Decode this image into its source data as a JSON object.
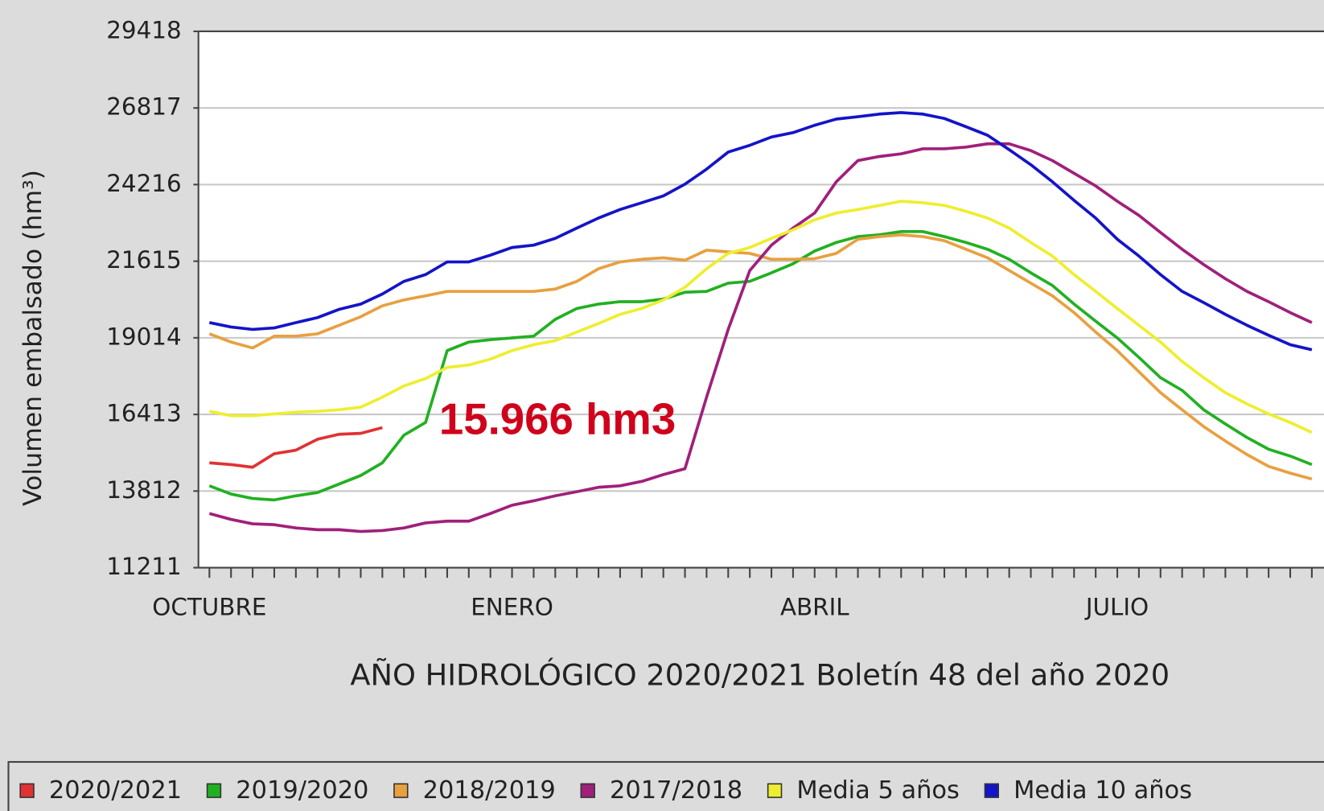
{
  "chart_data": {
    "type": "line",
    "xlabel": "AÑO HIDROLÓGICO 2020/2021 Boletín 48 del año 2020",
    "ylabel": "Volumen embalsado (hm³)",
    "annotation": "15.966 hm3",
    "categories": [
      "OCTUBRE",
      null,
      null,
      null,
      null,
      null,
      null,
      null,
      null,
      null,
      null,
      null,
      null,
      null,
      "ENERO",
      null,
      null,
      null,
      null,
      null,
      null,
      null,
      null,
      null,
      null,
      null,
      null,
      null,
      "ABRIL",
      null,
      null,
      null,
      null,
      null,
      null,
      null,
      null,
      null,
      null,
      null,
      null,
      null,
      "JULIO",
      null,
      null,
      null,
      null,
      null,
      null,
      null,
      null,
      null
    ],
    "ylim": [
      11211,
      29418
    ],
    "yticks": [
      11211,
      13812,
      16413,
      19014,
      21615,
      24216,
      26817,
      29418
    ],
    "grid": true,
    "legend": "bottom",
    "series": [
      {
        "name": "2020/2021",
        "color": "#e03232",
        "values": [
          14770,
          14710,
          14620,
          15080,
          15200,
          15570,
          15740,
          15770,
          15966,
          null,
          null,
          null,
          null,
          null,
          null,
          null,
          null,
          null,
          null,
          null,
          null,
          null,
          null,
          null,
          null,
          null,
          null,
          null,
          null,
          null,
          null,
          null,
          null,
          null,
          null,
          null,
          null,
          null,
          null,
          null,
          null,
          null,
          null,
          null,
          null,
          null,
          null,
          null,
          null,
          null,
          null,
          null
        ]
      },
      {
        "name": "2019/2020",
        "color": "#22b022",
        "values": [
          13990,
          13710,
          13560,
          13510,
          13650,
          13760,
          14050,
          14340,
          14770,
          15710,
          16140,
          18580,
          18870,
          18950,
          19010,
          19070,
          19640,
          20010,
          20160,
          20240,
          20240,
          20330,
          20560,
          20590,
          20870,
          20930,
          21220,
          21530,
          21960,
          22250,
          22450,
          22510,
          22620,
          22620,
          22450,
          22250,
          22020,
          21680,
          21220,
          20790,
          20160,
          19580,
          19010,
          18350,
          17660,
          17230,
          16570,
          16090,
          15630,
          15230,
          15000,
          14710
        ]
      },
      {
        "name": "2018/2019",
        "color": "#e8a040",
        "values": [
          19150,
          18870,
          18670,
          19070,
          19070,
          19150,
          19440,
          19730,
          20100,
          20300,
          20440,
          20590,
          20590,
          20590,
          20590,
          20590,
          20670,
          20930,
          21360,
          21590,
          21680,
          21730,
          21650,
          21990,
          21930,
          21880,
          21680,
          21680,
          21700,
          21880,
          22360,
          22450,
          22510,
          22450,
          22310,
          22020,
          21730,
          21300,
          20870,
          20440,
          19870,
          19210,
          18580,
          17860,
          17150,
          16570,
          16000,
          15510,
          15050,
          14650,
          14420,
          14220
        ]
      },
      {
        "name": "2017/2018",
        "color": "#a0207a",
        "values": [
          13050,
          12850,
          12700,
          12670,
          12560,
          12500,
          12500,
          12440,
          12470,
          12560,
          12730,
          12790,
          12790,
          13050,
          13330,
          13480,
          13650,
          13790,
          13940,
          13990,
          14140,
          14370,
          14570,
          17000,
          19300,
          21300,
          22160,
          22740,
          23250,
          24310,
          25030,
          25170,
          25260,
          25430,
          25430,
          25490,
          25600,
          25600,
          25370,
          25030,
          24600,
          24170,
          23650,
          23170,
          22590,
          22020,
          21500,
          21020,
          20590,
          20240,
          19870,
          19530
        ]
      },
      {
        "name": "Media 5 años",
        "color": "#eeee30",
        "values": [
          16520,
          16370,
          16370,
          16430,
          16490,
          16520,
          16570,
          16660,
          17000,
          17380,
          17630,
          18010,
          18090,
          18290,
          18580,
          18780,
          18920,
          19210,
          19500,
          19810,
          20010,
          20300,
          20730,
          21360,
          21880,
          22080,
          22390,
          22680,
          23020,
          23250,
          23370,
          23510,
          23650,
          23600,
          23510,
          23310,
          23080,
          22740,
          22250,
          21790,
          21160,
          20590,
          20010,
          19440,
          18870,
          18210,
          17660,
          17150,
          16770,
          16430,
          16140,
          15800
        ]
      },
      {
        "name": "Media 10 años",
        "color": "#1414c8",
        "values": [
          19530,
          19380,
          19300,
          19350,
          19530,
          19700,
          19980,
          20160,
          20500,
          20930,
          21160,
          21590,
          21590,
          21820,
          22080,
          22160,
          22390,
          22740,
          23080,
          23370,
          23600,
          23830,
          24230,
          24740,
          25320,
          25550,
          25830,
          25980,
          26230,
          26440,
          26520,
          26610,
          26660,
          26610,
          26460,
          26180,
          25890,
          25400,
          24890,
          24310,
          23680,
          23080,
          22360,
          21790,
          21160,
          20590,
          20210,
          19810,
          19440,
          19100,
          18780,
          18610
        ]
      }
    ]
  }
}
